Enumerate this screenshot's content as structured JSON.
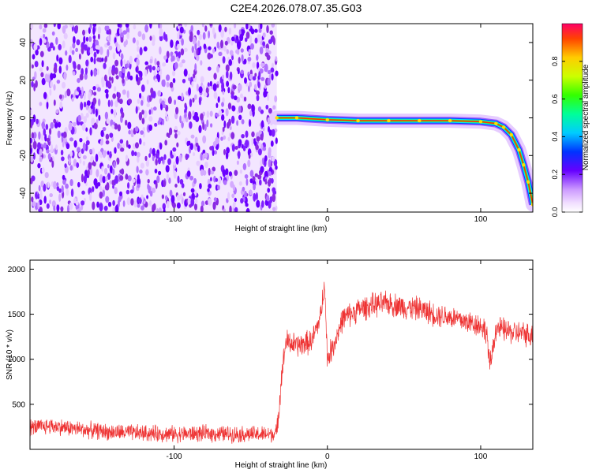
{
  "title": "C2E4.2026.078.07.35.G03",
  "chart_data": [
    {
      "type": "heatmap",
      "xlabel": "Height of straight line (km)",
      "ylabel": "Frequency (Hz)",
      "xlim": [
        -194,
        134
      ],
      "ylim": [
        -50,
        50
      ],
      "xticks": [
        -100,
        0,
        100
      ],
      "yticks": [
        -40,
        -20,
        0,
        20,
        40
      ],
      "colorbar": {
        "label": "Normalized spectral amplitude",
        "range": [
          0,
          1
        ],
        "ticks": [
          "0.0",
          "0.2",
          "0.4",
          "0.6",
          "0.8"
        ]
      },
      "noise_region_x": [
        -194,
        -33
      ],
      "signal_track": {
        "x": [
          -33,
          -20,
          0,
          20,
          40,
          60,
          80,
          100,
          110,
          115,
          120,
          125,
          128,
          131,
          134
        ],
        "frequency": [
          0,
          0,
          -1,
          -1.5,
          -1.5,
          -1.5,
          -1.5,
          -2,
          -3,
          -5,
          -9,
          -17,
          -25,
          -34,
          -46
        ]
      }
    },
    {
      "type": "line",
      "xlabel": "Height of straight line (km)",
      "ylabel": "SNR (10 * v/v)",
      "xlim": [
        -194,
        134
      ],
      "ylim": [
        0,
        2100
      ],
      "xticks": [
        -100,
        0,
        100
      ],
      "yticks": [
        500,
        1000,
        1500,
        2000
      ],
      "color": "#ee3333",
      "series": [
        {
          "x": [
            -194,
            -180,
            -160,
            -140,
            -120,
            -100,
            -80,
            -60,
            -40,
            -33,
            -30,
            -27,
            -20,
            -10,
            -4,
            -2,
            0,
            5,
            10,
            20,
            30,
            40,
            50,
            60,
            70,
            80,
            90,
            100,
            104,
            106,
            110,
            120,
            130,
            134
          ],
          "y": [
            240,
            260,
            220,
            190,
            180,
            170,
            175,
            170,
            165,
            180,
            800,
            1200,
            1150,
            1200,
            1500,
            1900,
            1000,
            1200,
            1450,
            1550,
            1600,
            1620,
            1580,
            1560,
            1500,
            1470,
            1420,
            1380,
            1300,
            900,
            1350,
            1300,
            1280,
            1260
          ]
        }
      ]
    }
  ]
}
